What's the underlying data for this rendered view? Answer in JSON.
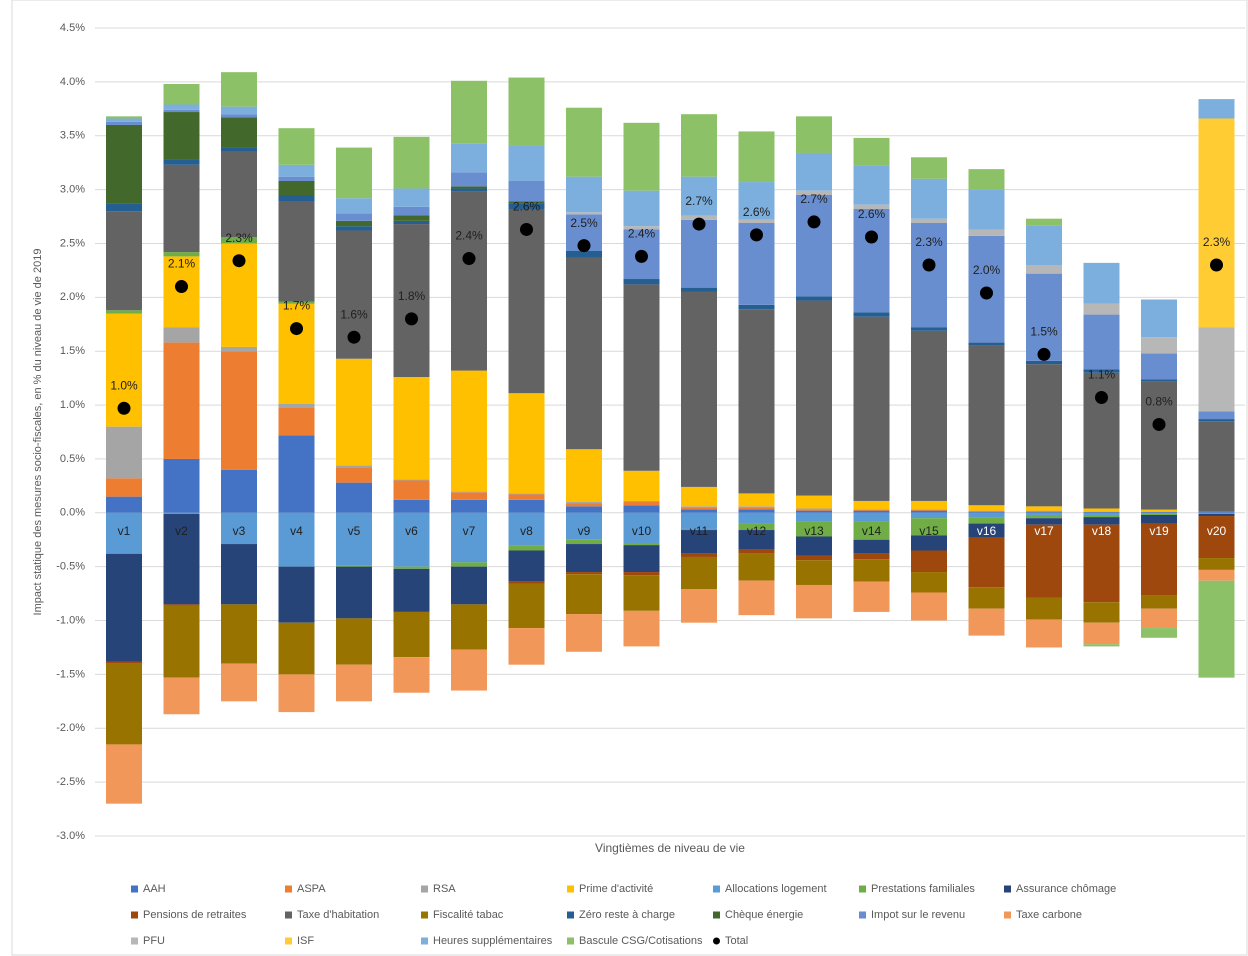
{
  "chart_data": {
    "type": "stacked-bar",
    "y_label": "Impact statique des mesures socio-fiscales, en % du niveau de vie de 2019",
    "x_label": "Vingtièmes de niveau de vie",
    "categories": [
      "v1",
      "v2",
      "v3",
      "v4",
      "v5",
      "v6",
      "v7",
      "v8",
      "v9",
      "v10",
      "v11",
      "v12",
      "v13",
      "v14",
      "v15",
      "v16",
      "v17",
      "v18",
      "v19",
      "v20"
    ],
    "ylim": [
      -3.0,
      4.5
    ],
    "yticks": [
      {
        "value": 4.5,
        "label": "4.5%"
      },
      {
        "value": 4.0,
        "label": "4.0%"
      },
      {
        "value": 3.5,
        "label": "3.5%"
      },
      {
        "value": 3.0,
        "label": "3.0%"
      },
      {
        "value": 2.5,
        "label": "2.5%"
      },
      {
        "value": 2.0,
        "label": "2.0%"
      },
      {
        "value": 1.5,
        "label": "1.5%"
      },
      {
        "value": 1.0,
        "label": "1.0%"
      },
      {
        "value": 0.5,
        "label": "0.5%"
      },
      {
        "value": 0.0,
        "label": "0.0%"
      },
      {
        "value": -0.5,
        "label": "-0.5%"
      },
      {
        "value": -1.0,
        "label": "-1.0%"
      },
      {
        "value": -1.5,
        "label": "-1.5%"
      },
      {
        "value": -2.0,
        "label": "-2.0%"
      },
      {
        "value": -2.5,
        "label": "-2.5%"
      },
      {
        "value": -3.0,
        "label": "-3.0%"
      }
    ],
    "grid": true,
    "legend": "bottom",
    "series": [
      {
        "name": "AAH",
        "color": "#4472c4",
        "values": [
          0.15,
          0.5,
          0.4,
          0.72,
          0.28,
          0.12,
          0.12,
          0.12,
          0.06,
          0.07,
          0.03,
          0.03,
          0.02,
          0.02,
          0.02,
          0.01,
          0.01,
          0.01,
          0.01,
          0.01
        ]
      },
      {
        "name": "ASPA",
        "color": "#ed7d31",
        "values": [
          0.17,
          1.08,
          1.1,
          0.26,
          0.14,
          0.18,
          0.07,
          0.05,
          0.03,
          0.03,
          0.02,
          0.02,
          0.01,
          0.01,
          0.01,
          0.01,
          0.01,
          0,
          0,
          0
        ]
      },
      {
        "name": "RSA",
        "color": "#a5a5a5",
        "values": [
          0.48,
          0.14,
          0.04,
          0.03,
          0.02,
          0.01,
          0.01,
          0.01,
          0.01,
          0.01,
          0.01,
          0.01,
          0.01,
          0,
          0,
          0,
          0,
          0,
          0,
          0
        ]
      },
      {
        "name": "Prime d'activité",
        "color": "#ffc000",
        "values": [
          1.05,
          0.66,
          0.96,
          0.93,
          0.99,
          0.95,
          1.12,
          0.93,
          0.49,
          0.28,
          0.18,
          0.12,
          0.12,
          0.08,
          0.08,
          0.05,
          0.04,
          0.03,
          0.02,
          0
        ]
      },
      {
        "name": "Allocations logement",
        "color": "#5b9bd5",
        "values": [
          -0.38,
          -0.01,
          -0.29,
          -0.5,
          -0.49,
          -0.5,
          -0.46,
          -0.3,
          -0.25,
          -0.28,
          -0.15,
          -0.1,
          -0.08,
          -0.08,
          -0.05,
          -0.04,
          -0.02,
          -0.02,
          -0.01,
          -0.01
        ]
      },
      {
        "name": "Prestations familiales",
        "color": "#70ad47",
        "values": [
          0.03,
          0.04,
          0.06,
          0.02,
          -0.01,
          -0.02,
          -0.04,
          -0.05,
          -0.04,
          -0.02,
          -0.01,
          -0.06,
          -0.14,
          -0.17,
          -0.16,
          -0.06,
          -0.03,
          -0.02,
          -0.01,
          0
        ]
      },
      {
        "name": "Assurance chômage",
        "color": "#264478",
        "values": [
          -1.0,
          -0.84,
          -0.56,
          -0.52,
          -0.48,
          -0.4,
          -0.35,
          -0.29,
          -0.26,
          -0.25,
          -0.22,
          -0.18,
          -0.18,
          -0.13,
          -0.14,
          -0.13,
          -0.06,
          -0.07,
          -0.08,
          -0.02
        ]
      },
      {
        "name": "Pensions de retraites",
        "color": "#9e480e",
        "values": [
          -0.02,
          -0.01,
          0,
          0,
          0,
          0,
          0,
          -0.02,
          -0.02,
          -0.03,
          -0.03,
          -0.04,
          -0.04,
          -0.05,
          -0.2,
          -0.46,
          -0.68,
          -0.72,
          -0.67,
          -0.39
        ]
      },
      {
        "name": "Taxe d'habitation",
        "color": "#636363",
        "values": [
          0.92,
          0.81,
          0.79,
          0.93,
          1.19,
          1.42,
          1.66,
          1.71,
          1.78,
          1.73,
          1.81,
          1.71,
          1.81,
          1.71,
          1.58,
          1.48,
          1.32,
          1.26,
          1.19,
          0.84
        ]
      },
      {
        "name": "Fiscalité tabac",
        "color": "#997300",
        "values": [
          -0.75,
          -0.67,
          -0.55,
          -0.48,
          -0.43,
          -0.42,
          -0.42,
          -0.41,
          -0.37,
          -0.33,
          -0.3,
          -0.25,
          -0.23,
          -0.21,
          -0.19,
          -0.2,
          -0.2,
          -0.19,
          -0.12,
          -0.11
        ]
      },
      {
        "name": "Zéro reste à charge",
        "color": "#255e91",
        "values": [
          0.07,
          0.05,
          0.04,
          0.06,
          0.04,
          0.03,
          0.03,
          0.05,
          0.06,
          0.05,
          0.04,
          0.04,
          0.04,
          0.04,
          0.03,
          0.03,
          0.03,
          0.03,
          0.02,
          0.02
        ]
      },
      {
        "name": "Chèque énergie",
        "color": "#43682b",
        "values": [
          0.73,
          0.44,
          0.28,
          0.13,
          0.05,
          0.05,
          0.02,
          0.02,
          0,
          0,
          0,
          0,
          0,
          0,
          0,
          0,
          0,
          0,
          0,
          0
        ]
      },
      {
        "name": "Impot sur le revenu",
        "color": "#698ed0",
        "values": [
          0.03,
          0.02,
          0.03,
          0.04,
          0.07,
          0.08,
          0.13,
          0.19,
          0.34,
          0.46,
          0.63,
          0.76,
          0.94,
          0.96,
          0.97,
          0.99,
          0.81,
          0.51,
          0.24,
          0.07
        ]
      },
      {
        "name": "Taxe carbone",
        "color": "#f1975a",
        "values": [
          -0.55,
          -0.34,
          -0.35,
          -0.35,
          -0.34,
          -0.33,
          -0.38,
          -0.34,
          -0.35,
          -0.33,
          -0.31,
          -0.32,
          -0.31,
          -0.28,
          -0.26,
          -0.25,
          -0.26,
          -0.2,
          -0.18,
          -0.1
        ]
      },
      {
        "name": "PFU",
        "color": "#b7b7b7",
        "values": [
          0,
          0,
          0,
          0,
          0,
          0,
          0,
          0,
          0.02,
          0.03,
          0.04,
          0.03,
          0.04,
          0.04,
          0.04,
          0.06,
          0.08,
          0.1,
          0.15,
          0.78
        ]
      },
      {
        "name": "ISF",
        "color": "#ffcd33",
        "values": [
          0,
          0,
          0,
          0,
          0,
          0,
          0,
          0,
          0,
          0,
          0,
          0,
          0,
          0,
          0,
          0,
          0,
          0,
          0,
          1.94
        ]
      },
      {
        "name": "Heures supplémentaires",
        "color": "#7cafdd",
        "values": [
          0.03,
          0.05,
          0.07,
          0.11,
          0.14,
          0.17,
          0.27,
          0.33,
          0.33,
          0.33,
          0.36,
          0.35,
          0.35,
          0.36,
          0.37,
          0.37,
          0.37,
          0.38,
          0.35,
          0.18
        ]
      },
      {
        "name": "Bascule CSG/Cotisations",
        "color": "#8cc168",
        "values": [
          0.02,
          0.19,
          0.32,
          0.34,
          0.47,
          0.48,
          0.58,
          0.63,
          0.64,
          0.63,
          0.58,
          0.47,
          0.34,
          0.26,
          0.2,
          0.19,
          0.06,
          -0.02,
          -0.09,
          -0.9
        ]
      }
    ],
    "total": {
      "name": "Total",
      "color": "#000000",
      "values": [
        0.97,
        2.1,
        2.34,
        1.71,
        1.63,
        1.8,
        2.36,
        2.63,
        2.48,
        2.38,
        2.68,
        2.58,
        2.7,
        2.56,
        2.3,
        2.04,
        1.47,
        1.07,
        0.82,
        2.3
      ],
      "value_labels": [
        "1.0%",
        "2.1%",
        "2.3%",
        "1.7%",
        "1.6%",
        "1.8%",
        "2.4%",
        "2.6%",
        "2.5%",
        "2.4%",
        "2.7%",
        "2.6%",
        "2.7%",
        "2.6%",
        "2.3%",
        "2.0%",
        "1.5%",
        "1.1%",
        "0.8%",
        "2.3%"
      ]
    }
  }
}
